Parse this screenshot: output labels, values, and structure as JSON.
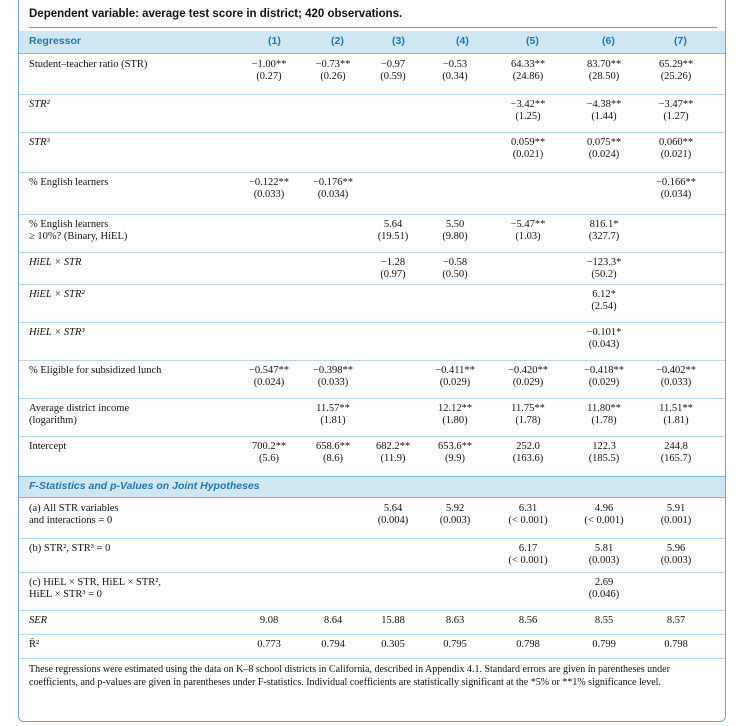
{
  "dependent_variable": "Dependent variable: average test score in district; 420 observations.",
  "header": {
    "regressor": "Regressor",
    "columns": [
      "(1)",
      "(2)",
      "(3)",
      "(4)",
      "(5)",
      "(6)",
      "(7)"
    ]
  },
  "rows": [
    {
      "label": "Student–teacher ratio (STR)",
      "cells": [
        [
          "−1.00**",
          "(0.27)"
        ],
        [
          "−0.73**",
          "(0.26)"
        ],
        [
          "−0.97",
          "(0.59)"
        ],
        [
          "−0.53",
          "(0.34)"
        ],
        [
          "64.33**",
          "(24.86)"
        ],
        [
          "83.70**",
          "(28.50)"
        ],
        [
          "65.29**",
          "(25.26)"
        ]
      ]
    },
    {
      "label": "STR²",
      "cells": [
        [
          "",
          ""
        ],
        [
          "",
          ""
        ],
        [
          "",
          ""
        ],
        [
          "",
          ""
        ],
        [
          "−3.42**",
          "(1.25)"
        ],
        [
          "−4.38**",
          "(1.44)"
        ],
        [
          "−3.47**",
          "(1.27)"
        ]
      ]
    },
    {
      "label": "STR³",
      "cells": [
        [
          "",
          ""
        ],
        [
          "",
          ""
        ],
        [
          "",
          ""
        ],
        [
          "",
          ""
        ],
        [
          "0.059**",
          "(0.021)"
        ],
        [
          "0.075**",
          "(0.024)"
        ],
        [
          "0.060**",
          "(0.021)"
        ]
      ]
    },
    {
      "label": "% English learners",
      "cells": [
        [
          "−0.122**",
          "(0.033)"
        ],
        [
          "−0.176**",
          "(0.034)"
        ],
        [
          "",
          ""
        ],
        [
          "",
          ""
        ],
        [
          "",
          ""
        ],
        [
          "",
          ""
        ],
        [
          "−0.166**",
          "(0.034)"
        ]
      ]
    },
    {
      "label": "% English learners",
      "label2": "≥ 10%? (Binary, HiEL)",
      "cells": [
        [
          "",
          ""
        ],
        [
          "",
          ""
        ],
        [
          "5.64",
          "(19.51)"
        ],
        [
          "5.50",
          "(9.80)"
        ],
        [
          "−5.47**",
          "(1.03)"
        ],
        [
          "816.1*",
          "(327.7)"
        ],
        [
          "",
          ""
        ]
      ]
    },
    {
      "label": "HiEL × STR",
      "cells": [
        [
          "",
          ""
        ],
        [
          "",
          ""
        ],
        [
          "−1.28",
          "(0.97)"
        ],
        [
          "−0.58",
          "(0.50)"
        ],
        [
          "",
          ""
        ],
        [
          "−123.3*",
          "(50.2)"
        ],
        [
          "",
          ""
        ]
      ]
    },
    {
      "label": "HiEL × STR²",
      "cells": [
        [
          "",
          ""
        ],
        [
          "",
          ""
        ],
        [
          "",
          ""
        ],
        [
          "",
          ""
        ],
        [
          "",
          ""
        ],
        [
          "6.12*",
          "(2.54)"
        ],
        [
          "",
          ""
        ]
      ]
    },
    {
      "label": "HiEL × STR³",
      "cells": [
        [
          "",
          ""
        ],
        [
          "",
          ""
        ],
        [
          "",
          ""
        ],
        [
          "",
          ""
        ],
        [
          "",
          ""
        ],
        [
          "−0.101*",
          "(0.043)"
        ],
        [
          "",
          ""
        ]
      ]
    },
    {
      "label": "% Eligible for subsidized lunch",
      "cells": [
        [
          "−0.547**",
          "(0.024)"
        ],
        [
          "−0.398**",
          "(0.033)"
        ],
        [
          "",
          ""
        ],
        [
          "−0.411**",
          "(0.029)"
        ],
        [
          "−0.420**",
          "(0.029)"
        ],
        [
          "−0.418**",
          "(0.029)"
        ],
        [
          "−0.402**",
          "(0.033)"
        ]
      ]
    },
    {
      "label": "Average district income",
      "label2": "(logarithm)",
      "cells": [
        [
          "",
          ""
        ],
        [
          "11.57**",
          "(1.81)"
        ],
        [
          "",
          ""
        ],
        [
          "12.12**",
          "(1.80)"
        ],
        [
          "11.75**",
          "(1.78)"
        ],
        [
          "11.80**",
          "(1.78)"
        ],
        [
          "11.51**",
          "(1.81)"
        ]
      ]
    },
    {
      "label": "Intercept",
      "cells": [
        [
          "700.2**",
          "(5.6)"
        ],
        [
          "658.6**",
          "(8.6)"
        ],
        [
          "682.2**",
          "(11.9)"
        ],
        [
          "653.6**",
          "(9.9)"
        ],
        [
          "252.0",
          "(163.6)"
        ],
        [
          "122.3",
          "(185.5)"
        ],
        [
          "244.8",
          "(165.7)"
        ]
      ]
    }
  ],
  "section_title": "F-Statistics and p-Values on Joint Hypotheses",
  "f_rows": [
    {
      "label": "(a) All STR variables",
      "label2": "and interactions = 0",
      "cells": [
        [
          "",
          ""
        ],
        [
          "",
          ""
        ],
        [
          "5.64",
          "(0.004)"
        ],
        [
          "5.92",
          "(0.003)"
        ],
        [
          "6.31",
          "(< 0.001)"
        ],
        [
          "4.96",
          "(< 0.001)"
        ],
        [
          "5.91",
          "(0.001)"
        ]
      ]
    },
    {
      "label": "(b) STR², STR³ = 0",
      "cells": [
        [
          "",
          ""
        ],
        [
          "",
          ""
        ],
        [
          "",
          ""
        ],
        [
          "",
          ""
        ],
        [
          "6.17",
          "(< 0.001)"
        ],
        [
          "5.81",
          "(0.003)"
        ],
        [
          "5.96",
          "(0.003)"
        ]
      ]
    },
    {
      "label": "(c) HiEL × STR, HiEL × STR²,",
      "label2": "HiEL × STR³ = 0",
      "cells": [
        [
          "",
          ""
        ],
        [
          "",
          ""
        ],
        [
          "",
          ""
        ],
        [
          "",
          ""
        ],
        [
          "",
          ""
        ],
        [
          "2.69",
          "(0.046)"
        ],
        [
          "",
          ""
        ]
      ]
    }
  ],
  "stat_rows": [
    {
      "label": "SER",
      "cells": [
        "9.08",
        "8.64",
        "15.88",
        "8.63",
        "8.56",
        "8.55",
        "8.57"
      ]
    },
    {
      "label": "R̄²",
      "cells": [
        "0.773",
        "0.794",
        "0.305",
        "0.795",
        "0.798",
        "0.799",
        "0.798"
      ]
    }
  ],
  "note": "These regressions were estimated using the data on K–8 school districts in California, described in Appendix 4.1. Standard errors are given in parentheses under coefficients, and p-values are given in parentheses under F-statistics. Individual coefficients are statistically significant at the *5% or **1% significance level."
}
